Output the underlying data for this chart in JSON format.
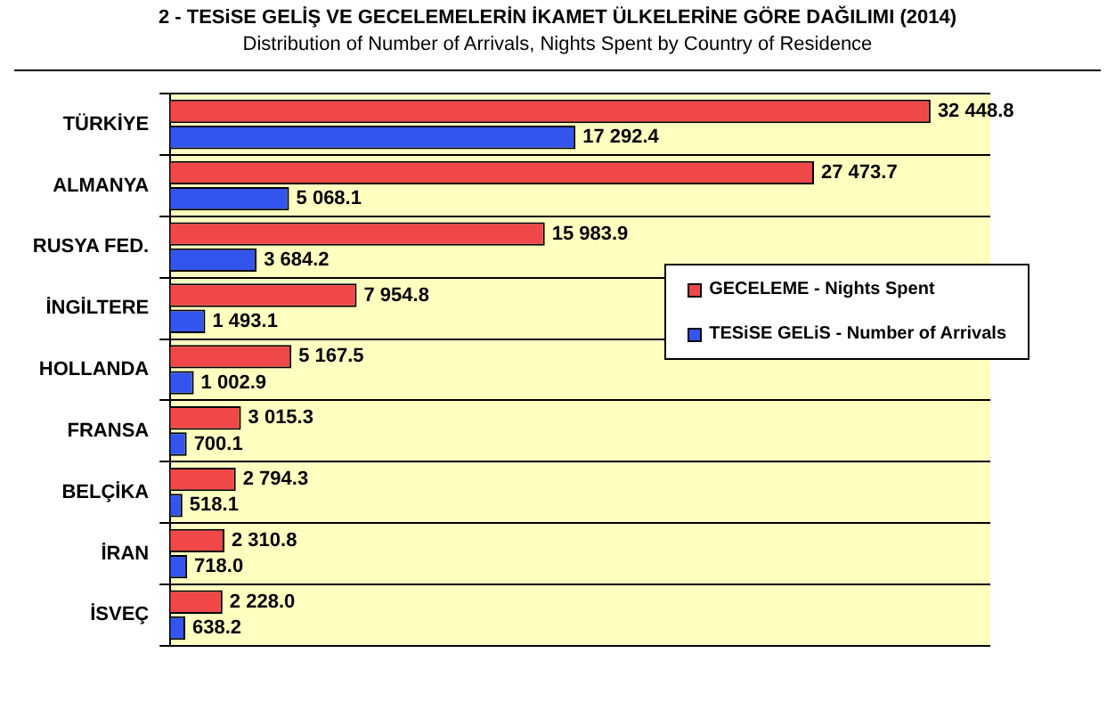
{
  "chart_data": {
    "type": "bar",
    "orientation": "horizontal",
    "title": "2 - TESiSE GELİŞ VE GECELEMELERİN İKAMET ÜLKELERİNE GÖRE DAĞILIMI (2014)",
    "subtitle": "Distribution of Number of Arrivals, Nights Spent by Country of Residence",
    "categories": [
      "TÜRKİYE",
      "ALMANYA",
      "RUSYA FED.",
      "İNGİLTERE",
      "HOLLANDA",
      "FRANSA",
      "BELÇİKA",
      "İRAN",
      "İSVEÇ"
    ],
    "series": [
      {
        "name": "GECELEME - Nights Spent",
        "color": "#f04848",
        "values": [
          32448.8,
          27473.7,
          15983.9,
          7954.8,
          5167.5,
          3015.3,
          2794.3,
          2310.8,
          2228.0
        ],
        "value_labels": [
          "32 448.8",
          "27 473.7",
          "15 983.9",
          "7 954.8",
          "5 167.5",
          "3 015.3",
          "2 794.3",
          "2 310.8",
          "2 228.0"
        ]
      },
      {
        "name": "TESiSE GELiS - Number of Arrivals",
        "color": "#3355ee",
        "values": [
          17292.4,
          5068.1,
          3684.2,
          1493.1,
          1002.9,
          700.1,
          518.1,
          718.0,
          638.2
        ],
        "value_labels": [
          "17 292.4",
          "5 068.1",
          "3 684.2",
          "1 493.1",
          "1 002.9",
          "700.1",
          "518.1",
          "718.0",
          "638.2"
        ]
      }
    ],
    "grid": "y",
    "legend": "right"
  }
}
